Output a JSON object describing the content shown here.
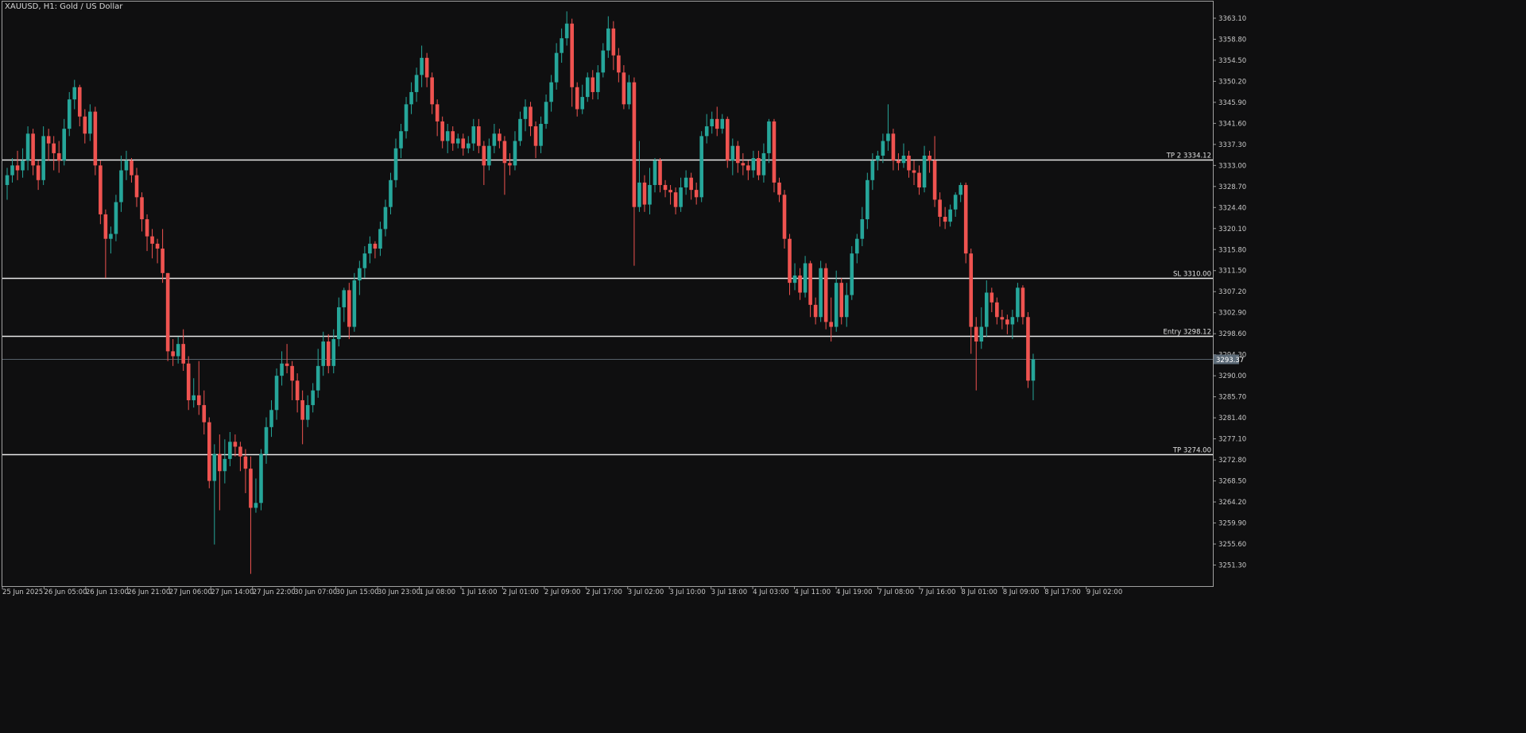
{
  "header": {
    "symbol_title": "XAUUSD, H1:  Gold / US Dollar"
  },
  "colors": {
    "background": "#0f0f10",
    "bull": "#26a69a",
    "bear": "#ef5350",
    "level_line": "#e8e8e8",
    "axis_text": "#c8c8c8",
    "current_price_bg": "#5d6b78"
  },
  "chart_data": {
    "type": "candlestick",
    "title": "XAUUSD, H1:  Gold / US Dollar",
    "ylim": [
      3247.0,
      3366.5
    ],
    "grid": false,
    "y_ticks": [
      "3363.10",
      "3358.80",
      "3354.50",
      "3350.20",
      "3345.90",
      "3341.60",
      "3337.30",
      "3333.00",
      "3328.70",
      "3324.40",
      "3320.10",
      "3315.80",
      "3311.50",
      "3307.20",
      "3302.90",
      "3298.60",
      "3294.30",
      "3290.00",
      "3285.70",
      "3281.40",
      "3277.10",
      "3272.80",
      "3268.50",
      "3264.20",
      "3259.90",
      "3255.60",
      "3251.30"
    ],
    "x_labels": [
      "25 Jun 2025",
      "26 Jun 05:00",
      "26 Jun 13:00",
      "26 Jun 21:00",
      "27 Jun 06:00",
      "27 Jun 14:00",
      "27 Jun 22:00",
      "30 Jun 07:00",
      "30 Jun 15:00",
      "30 Jun 23:00",
      "1 Jul 08:00",
      "1 Jul 16:00",
      "2 Jul 01:00",
      "2 Jul 09:00",
      "2 Jul 17:00",
      "3 Jul 02:00",
      "3 Jul 10:00",
      "3 Jul 18:00",
      "4 Jul 03:00",
      "4 Jul 11:00",
      "4 Jul 19:00",
      "7 Jul 08:00",
      "7 Jul 16:00",
      "8 Jul 01:00",
      "8 Jul 09:00",
      "8 Jul 17:00",
      "9 Jul 02:00"
    ],
    "levels": [
      {
        "label": "TP 2 3334.12",
        "value": 3334.12
      },
      {
        "label": "SL 3310.00",
        "value": 3310.0
      },
      {
        "label": "Entry 3298.12",
        "value": 3298.12
      },
      {
        "label": "TP 3274.00",
        "value": 3274.0
      }
    ],
    "current_price": {
      "label": "3293.37",
      "value": 3293.37
    },
    "candles": [
      [
        3329.0,
        3331.0,
        3326.0,
        3332.5
      ],
      [
        3331.0,
        3333.0,
        3329.5,
        3334.5
      ],
      [
        3333.0,
        3332.0,
        3330.0,
        3336.0
      ],
      [
        3332.0,
        3334.0,
        3330.5,
        3336.5
      ],
      [
        3334.0,
        3339.5,
        3332.0,
        3341.0
      ],
      [
        3339.5,
        3333.0,
        3331.0,
        3340.5
      ],
      [
        3333.0,
        3330.0,
        3328.0,
        3334.0
      ],
      [
        3330.0,
        3339.0,
        3329.0,
        3341.0
      ],
      [
        3339.0,
        3337.5,
        3334.0,
        3340.5
      ],
      [
        3337.5,
        3335.5,
        3332.0,
        3339.0
      ],
      [
        3335.5,
        3334.0,
        3331.5,
        3338.0
      ],
      [
        3334.0,
        3340.5,
        3333.0,
        3342.5
      ],
      [
        3340.5,
        3346.5,
        3339.0,
        3348.0
      ],
      [
        3346.5,
        3349.0,
        3344.5,
        3350.5
      ],
      [
        3349.0,
        3343.0,
        3341.0,
        3349.5
      ],
      [
        3343.0,
        3339.5,
        3337.5,
        3344.5
      ],
      [
        3339.5,
        3344.0,
        3338.0,
        3345.5
      ],
      [
        3344.0,
        3333.0,
        3331.0,
        3345.0
      ],
      [
        3333.0,
        3323.0,
        3321.0,
        3334.0
      ],
      [
        3323.0,
        3318.0,
        3310.0,
        3324.0
      ],
      [
        3318.0,
        3319.0,
        3315.0,
        3320.5
      ],
      [
        3319.0,
        3325.5,
        3317.5,
        3327.0
      ],
      [
        3325.5,
        3332.0,
        3323.5,
        3335.0
      ],
      [
        3332.0,
        3334.0,
        3330.0,
        3336.0
      ],
      [
        3334.0,
        3331.0,
        3329.5,
        3334.5
      ],
      [
        3331.0,
        3326.5,
        3324.5,
        3332.5
      ],
      [
        3326.5,
        3322.0,
        3319.5,
        3327.5
      ],
      [
        3322.0,
        3318.5,
        3315.5,
        3323.0
      ],
      [
        3318.5,
        3317.0,
        3314.0,
        3320.0
      ],
      [
        3317.0,
        3316.0,
        3313.0,
        3318.0
      ],
      [
        3316.0,
        3311.0,
        3309.0,
        3320.0
      ],
      [
        3311.0,
        3295.0,
        3293.0,
        3311.0
      ],
      [
        3295.0,
        3294.0,
        3292.0,
        3297.5
      ],
      [
        3294.0,
        3296.5,
        3292.5,
        3298.0
      ],
      [
        3296.5,
        3292.5,
        3291.0,
        3299.5
      ],
      [
        3292.5,
        3285.0,
        3283.0,
        3294.0
      ],
      [
        3285.0,
        3286.0,
        3283.5,
        3289.5
      ],
      [
        3286.0,
        3284.0,
        3282.0,
        3293.0
      ],
      [
        3284.0,
        3280.5,
        3278.0,
        3287.0
      ],
      [
        3280.5,
        3268.5,
        3267.0,
        3281.5
      ],
      [
        3268.5,
        3274.0,
        3255.5,
        3276.0
      ],
      [
        3274.0,
        3270.5,
        3262.5,
        3278.0
      ],
      [
        3270.5,
        3273.0,
        3268.0,
        3277.0
      ],
      [
        3273.0,
        3276.5,
        3271.5,
        3278.5
      ],
      [
        3276.5,
        3275.5,
        3273.5,
        3278.0
      ],
      [
        3275.5,
        3273.5,
        3270.5,
        3276.5
      ],
      [
        3273.5,
        3271.0,
        3266.0,
        3275.0
      ],
      [
        3271.0,
        3263.0,
        3249.5,
        3273.5
      ],
      [
        3263.0,
        3264.0,
        3262.0,
        3269.0
      ],
      [
        3264.0,
        3274.0,
        3262.5,
        3275.0
      ],
      [
        3274.0,
        3279.5,
        3272.0,
        3281.5
      ],
      [
        3279.5,
        3283.0,
        3277.5,
        3285.0
      ],
      [
        3283.0,
        3290.0,
        3281.0,
        3291.5
      ],
      [
        3290.0,
        3292.5,
        3288.0,
        3295.0
      ],
      [
        3292.5,
        3292.0,
        3290.5,
        3296.5
      ],
      [
        3292.0,
        3289.0,
        3285.0,
        3293.0
      ],
      [
        3289.0,
        3285.0,
        3282.5,
        3290.5
      ],
      [
        3285.0,
        3281.0,
        3276.0,
        3287.0
      ],
      [
        3281.0,
        3284.0,
        3279.5,
        3286.0
      ],
      [
        3284.0,
        3287.0,
        3282.5,
        3288.5
      ],
      [
        3287.0,
        3292.0,
        3285.5,
        3295.5
      ],
      [
        3292.0,
        3297.0,
        3290.0,
        3299.0
      ],
      [
        3297.0,
        3292.0,
        3290.5,
        3298.5
      ],
      [
        3292.0,
        3297.5,
        3290.5,
        3299.5
      ],
      [
        3297.5,
        3304.0,
        3296.0,
        3306.0
      ],
      [
        3304.0,
        3307.5,
        3301.0,
        3308.0
      ],
      [
        3307.5,
        3300.0,
        3297.5,
        3309.0
      ],
      [
        3300.0,
        3309.5,
        3299.0,
        3311.0
      ],
      [
        3309.5,
        3312.0,
        3306.5,
        3313.5
      ],
      [
        3312.0,
        3315.0,
        3310.0,
        3316.5
      ],
      [
        3315.0,
        3317.0,
        3313.0,
        3318.5
      ],
      [
        3317.0,
        3316.0,
        3314.0,
        3317.5
      ],
      [
        3316.0,
        3320.0,
        3314.5,
        3321.5
      ],
      [
        3320.0,
        3324.5,
        3318.5,
        3326.0
      ],
      [
        3324.5,
        3330.0,
        3323.0,
        3331.5
      ],
      [
        3330.0,
        3336.5,
        3328.5,
        3338.5
      ],
      [
        3336.5,
        3340.0,
        3334.5,
        3341.5
      ],
      [
        3340.0,
        3345.5,
        3338.5,
        3347.0
      ],
      [
        3345.5,
        3348.0,
        3343.5,
        3350.0
      ],
      [
        3348.0,
        3351.5,
        3346.0,
        3353.0
      ],
      [
        3351.5,
        3355.0,
        3349.0,
        3357.5
      ],
      [
        3355.0,
        3351.0,
        3349.0,
        3356.0
      ],
      [
        3351.0,
        3345.5,
        3343.5,
        3352.0
      ],
      [
        3345.5,
        3342.0,
        3339.0,
        3346.5
      ],
      [
        3342.0,
        3338.0,
        3336.5,
        3343.0
      ],
      [
        3338.0,
        3340.0,
        3335.5,
        3341.5
      ],
      [
        3340.0,
        3337.5,
        3336.0,
        3341.0
      ],
      [
        3337.5,
        3338.5,
        3336.5,
        3339.5
      ],
      [
        3338.5,
        3336.5,
        3335.0,
        3339.5
      ],
      [
        3336.5,
        3337.5,
        3335.5,
        3339.0
      ],
      [
        3337.5,
        3341.0,
        3336.0,
        3342.5
      ],
      [
        3341.0,
        3337.0,
        3335.5,
        3342.5
      ],
      [
        3337.0,
        3333.0,
        3329.0,
        3338.0
      ],
      [
        3333.0,
        3337.0,
        3332.0,
        3338.5
      ],
      [
        3337.0,
        3339.5,
        3335.5,
        3341.5
      ],
      [
        3339.5,
        3338.0,
        3336.5,
        3340.5
      ],
      [
        3338.0,
        3333.5,
        3327.0,
        3339.0
      ],
      [
        3333.5,
        3333.0,
        3331.0,
        3335.5
      ],
      [
        3333.0,
        3338.0,
        3332.0,
        3340.0
      ],
      [
        3338.0,
        3342.5,
        3337.0,
        3344.0
      ],
      [
        3342.5,
        3345.0,
        3340.0,
        3346.5
      ],
      [
        3345.0,
        3341.0,
        3339.0,
        3346.0
      ],
      [
        3341.0,
        3337.0,
        3334.5,
        3342.0
      ],
      [
        3337.0,
        3341.5,
        3335.5,
        3343.0
      ],
      [
        3341.5,
        3346.0,
        3340.5,
        3347.5
      ],
      [
        3346.0,
        3350.0,
        3344.0,
        3351.5
      ],
      [
        3350.0,
        3356.0,
        3348.5,
        3358.0
      ],
      [
        3356.0,
        3359.0,
        3354.0,
        3361.0
      ],
      [
        3359.0,
        3362.0,
        3357.5,
        3364.5
      ],
      [
        3362.0,
        3349.0,
        3345.0,
        3363.0
      ],
      [
        3349.0,
        3344.5,
        3343.0,
        3350.0
      ],
      [
        3344.5,
        3347.0,
        3343.5,
        3349.5
      ],
      [
        3347.0,
        3351.0,
        3346.0,
        3352.0
      ],
      [
        3351.0,
        3348.0,
        3346.5,
        3352.5
      ],
      [
        3348.0,
        3352.0,
        3346.5,
        3353.5
      ],
      [
        3352.0,
        3356.5,
        3351.0,
        3358.0
      ],
      [
        3356.5,
        3361.0,
        3355.0,
        3363.5
      ],
      [
        3361.0,
        3355.5,
        3352.5,
        3362.5
      ],
      [
        3355.5,
        3352.0,
        3350.0,
        3357.0
      ],
      [
        3352.0,
        3345.5,
        3344.5,
        3353.5
      ],
      [
        3345.5,
        3350.0,
        3344.5,
        3351.5
      ],
      [
        3350.0,
        3324.5,
        3312.5,
        3351.0
      ],
      [
        3324.5,
        3329.5,
        3323.5,
        3338.0
      ],
      [
        3329.5,
        3325.0,
        3323.5,
        3331.0
      ],
      [
        3325.0,
        3329.0,
        3323.0,
        3332.5
      ],
      [
        3329.0,
        3334.0,
        3327.5,
        3334.5
      ],
      [
        3334.0,
        3329.0,
        3327.5,
        3334.5
      ],
      [
        3329.0,
        3328.0,
        3326.5,
        3330.0
      ],
      [
        3328.0,
        3327.5,
        3325.0,
        3329.0
      ],
      [
        3327.5,
        3324.5,
        3323.0,
        3328.5
      ],
      [
        3324.5,
        3328.5,
        3323.5,
        3330.5
      ],
      [
        3328.5,
        3330.5,
        3327.0,
        3332.0
      ],
      [
        3330.5,
        3328.0,
        3326.0,
        3331.5
      ],
      [
        3328.0,
        3326.5,
        3325.0,
        3329.5
      ],
      [
        3326.5,
        3339.0,
        3325.5,
        3340.0
      ],
      [
        3339.0,
        3341.0,
        3337.5,
        3343.5
      ],
      [
        3341.0,
        3342.5,
        3339.5,
        3344.0
      ],
      [
        3342.5,
        3340.5,
        3339.0,
        3345.0
      ],
      [
        3340.5,
        3342.5,
        3339.5,
        3343.5
      ],
      [
        3342.5,
        3334.0,
        3332.5,
        3343.0
      ],
      [
        3334.0,
        3337.0,
        3331.0,
        3338.5
      ],
      [
        3337.0,
        3333.5,
        3331.5,
        3338.0
      ],
      [
        3333.5,
        3333.0,
        3331.0,
        3335.5
      ],
      [
        3333.0,
        3332.0,
        3330.0,
        3334.0
      ],
      [
        3332.0,
        3334.5,
        3330.5,
        3336.0
      ],
      [
        3334.5,
        3331.0,
        3330.0,
        3336.0
      ],
      [
        3331.0,
        3335.5,
        3329.5,
        3337.5
      ],
      [
        3335.5,
        3342.0,
        3333.5,
        3342.5
      ],
      [
        3342.0,
        3329.5,
        3327.5,
        3342.5
      ],
      [
        3329.5,
        3327.0,
        3325.5,
        3330.5
      ],
      [
        3327.0,
        3318.0,
        3316.0,
        3328.0
      ],
      [
        3318.0,
        3309.0,
        3306.5,
        3319.0
      ],
      [
        3309.0,
        3310.5,
        3307.5,
        3313.0
      ],
      [
        3310.5,
        3307.0,
        3305.5,
        3312.0
      ],
      [
        3307.0,
        3313.0,
        3306.0,
        3314.5
      ],
      [
        3313.0,
        3304.5,
        3302.0,
        3313.5
      ],
      [
        3304.5,
        3302.0,
        3300.5,
        3306.0
      ],
      [
        3302.0,
        3312.0,
        3301.0,
        3313.5
      ],
      [
        3312.0,
        3301.0,
        3299.5,
        3313.0
      ],
      [
        3301.0,
        3300.0,
        3297.0,
        3306.0
      ],
      [
        3300.0,
        3309.0,
        3299.0,
        3311.5
      ],
      [
        3309.0,
        3302.0,
        3300.5,
        3310.0
      ],
      [
        3302.0,
        3306.5,
        3300.0,
        3309.0
      ],
      [
        3306.5,
        3315.0,
        3305.5,
        3316.5
      ],
      [
        3315.0,
        3318.0,
        3313.0,
        3319.0
      ],
      [
        3318.0,
        3322.0,
        3316.5,
        3324.5
      ],
      [
        3322.0,
        3330.0,
        3320.0,
        3331.5
      ],
      [
        3330.0,
        3334.0,
        3328.0,
        3335.5
      ],
      [
        3334.0,
        3335.0,
        3332.0,
        3336.0
      ],
      [
        3335.0,
        3338.0,
        3333.5,
        3339.5
      ],
      [
        3338.0,
        3339.5,
        3336.0,
        3345.5
      ],
      [
        3339.5,
        3334.0,
        3332.0,
        3340.5
      ],
      [
        3334.0,
        3333.5,
        3332.0,
        3335.5
      ],
      [
        3333.5,
        3335.0,
        3332.5,
        3337.5
      ],
      [
        3335.0,
        3332.0,
        3330.5,
        3336.0
      ],
      [
        3332.0,
        3331.5,
        3329.0,
        3334.0
      ],
      [
        3331.5,
        3328.5,
        3327.0,
        3333.0
      ],
      [
        3328.5,
        3335.0,
        3327.5,
        3337.0
      ],
      [
        3335.0,
        3334.0,
        3331.5,
        3336.0
      ],
      [
        3334.0,
        3326.0,
        3324.5,
        3339.0
      ],
      [
        3326.0,
        3322.5,
        3320.5,
        3327.5
      ],
      [
        3322.5,
        3321.5,
        3320.0,
        3324.5
      ],
      [
        3321.5,
        3324.0,
        3320.5,
        3325.0
      ],
      [
        3324.0,
        3327.0,
        3322.5,
        3327.5
      ],
      [
        3327.0,
        3329.0,
        3325.5,
        3329.5
      ],
      [
        3329.0,
        3315.0,
        3313.0,
        3329.5
      ],
      [
        3315.0,
        3300.0,
        3294.5,
        3316.0
      ],
      [
        3300.0,
        3297.0,
        3287.0,
        3302.0
      ],
      [
        3297.0,
        3300.0,
        3295.5,
        3304.0
      ],
      [
        3300.0,
        3307.0,
        3298.0,
        3309.5
      ],
      [
        3307.0,
        3305.0,
        3303.0,
        3308.0
      ],
      [
        3305.0,
        3302.0,
        3300.5,
        3306.0
      ],
      [
        3302.0,
        3301.5,
        3299.5,
        3303.5
      ],
      [
        3301.5,
        3300.5,
        3298.5,
        3302.5
      ],
      [
        3300.5,
        3302.0,
        3297.5,
        3303.5
      ],
      [
        3302.0,
        3308.0,
        3301.0,
        3309.0
      ],
      [
        3308.0,
        3302.0,
        3300.5,
        3308.5
      ],
      [
        3302.0,
        3289.0,
        3287.5,
        3303.0
      ],
      [
        3289.0,
        3293.37,
        3285.0,
        3294.5
      ]
    ]
  }
}
